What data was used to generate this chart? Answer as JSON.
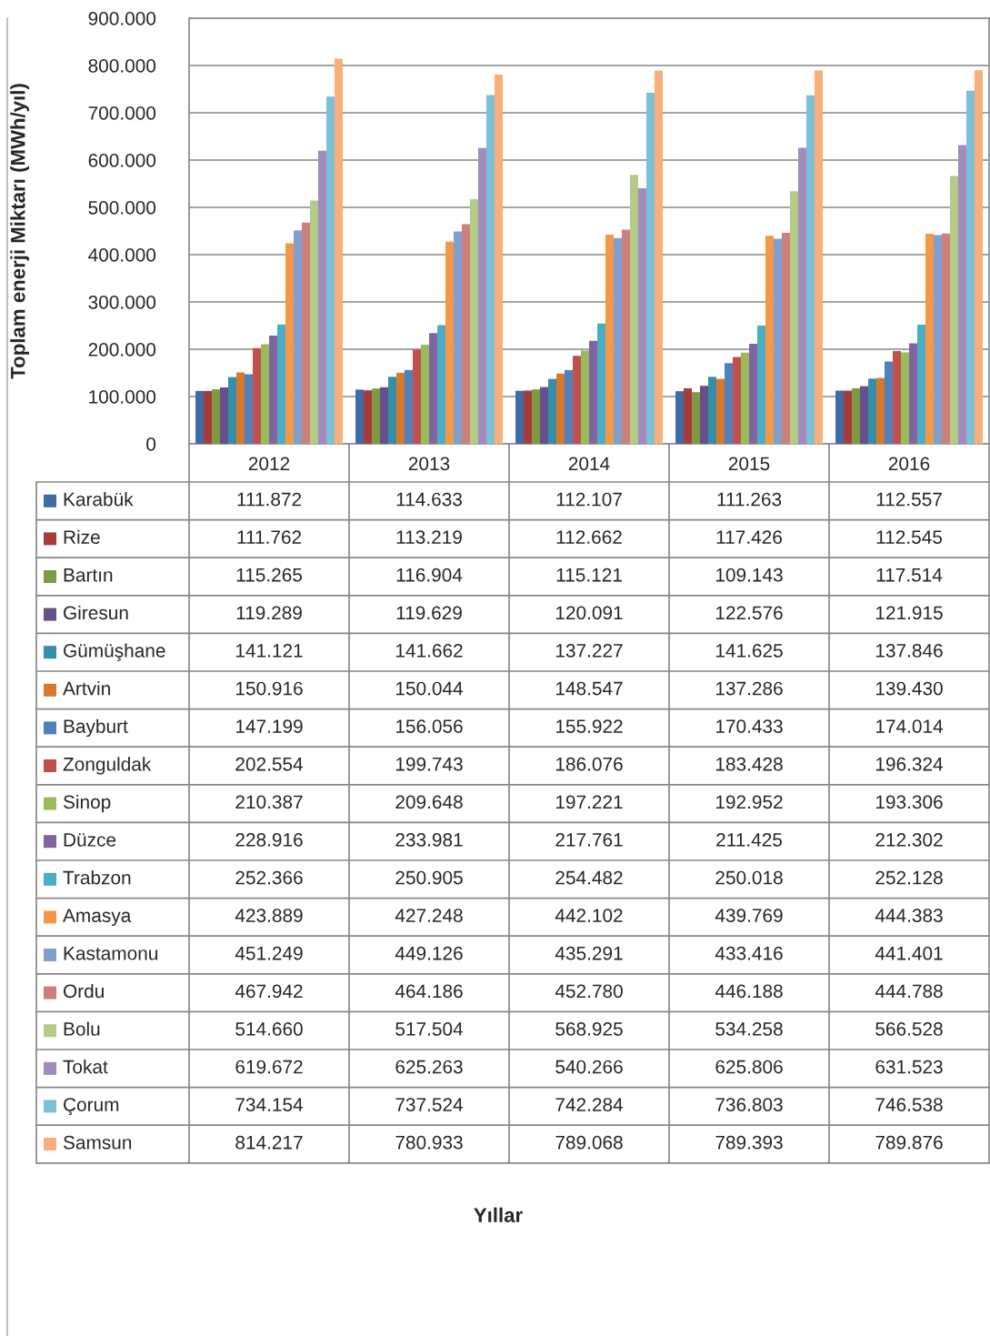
{
  "chart_data": {
    "type": "bar",
    "ylabel": "Toplam enerji Miktarı (MWh/yıl)",
    "annotations": [
      "Yıllar"
    ],
    "categories": [
      "2012",
      "2013",
      "2014",
      "2015",
      "2016"
    ],
    "ylim": [
      0,
      900000
    ],
    "yticks": [
      {
        "value": 0,
        "label": "0"
      },
      {
        "value": 100000,
        "label": "100.000"
      },
      {
        "value": 200000,
        "label": "200.000"
      },
      {
        "value": 300000,
        "label": "300.000"
      },
      {
        "value": 400000,
        "label": "400.000"
      },
      {
        "value": 500000,
        "label": "500.000"
      },
      {
        "value": 600000,
        "label": "600.000"
      },
      {
        "value": 700000,
        "label": "700.000"
      },
      {
        "value": 800000,
        "label": "800.000"
      },
      {
        "value": 900000,
        "label": "900.000"
      }
    ],
    "grid": "y",
    "legend": "bottom",
    "series": [
      {
        "name": "Karabük",
        "color": "#3c6ba5",
        "values": [
          111872,
          114633,
          112107,
          111263,
          112557
        ],
        "value_labels": [
          "111.872",
          "114.633",
          "112.107",
          "111.263",
          "112.557"
        ]
      },
      {
        "name": "Rize",
        "color": "#a83c3a",
        "values": [
          111762,
          113219,
          112662,
          117426,
          112545
        ],
        "value_labels": [
          "111.762",
          "113.219",
          "112.662",
          "117.426",
          "112.545"
        ]
      },
      {
        "name": "Bartın",
        "color": "#7f9a44",
        "values": [
          115265,
          116904,
          115121,
          109143,
          117514
        ],
        "value_labels": [
          "115.265",
          "116.904",
          "115.121",
          "109.143",
          "117.514"
        ]
      },
      {
        "name": "Giresun",
        "color": "#674f8a",
        "values": [
          119289,
          119629,
          120091,
          122576,
          121915
        ],
        "value_labels": [
          "119.289",
          "119.629",
          "120.091",
          "122.576",
          "121.915"
        ]
      },
      {
        "name": "Gümüşhane",
        "color": "#338fa8",
        "values": [
          141121,
          141662,
          137227,
          141625,
          137846
        ],
        "value_labels": [
          "141.121",
          "141.662",
          "137.227",
          "141.625",
          "137.846"
        ]
      },
      {
        "name": "Artvin",
        "color": "#d9792f",
        "values": [
          150916,
          150044,
          148547,
          137286,
          139430
        ],
        "value_labels": [
          "150.916",
          "150.044",
          "148.547",
          "137.286",
          "139.430"
        ]
      },
      {
        "name": "Bayburt",
        "color": "#4f81bd",
        "values": [
          147199,
          156056,
          155922,
          170433,
          174014
        ],
        "value_labels": [
          "147.199",
          "156.056",
          "155.922",
          "170.433",
          "174.014"
        ]
      },
      {
        "name": "Zonguldak",
        "color": "#c0504d",
        "values": [
          202554,
          199743,
          186076,
          183428,
          196324
        ],
        "value_labels": [
          "202.554",
          "199.743",
          "186.076",
          "183.428",
          "196.324"
        ]
      },
      {
        "name": "Sinop",
        "color": "#9bbb59",
        "values": [
          210387,
          209648,
          197221,
          192952,
          193306
        ],
        "value_labels": [
          "210.387",
          "209.648",
          "197.221",
          "192.952",
          "193.306"
        ]
      },
      {
        "name": "Düzce",
        "color": "#8064a2",
        "values": [
          228916,
          233981,
          217761,
          211425,
          212302
        ],
        "value_labels": [
          "228.916",
          "233.981",
          "217.761",
          "211.425",
          "212.302"
        ]
      },
      {
        "name": "Trabzon",
        "color": "#4bacc6",
        "values": [
          252366,
          250905,
          254482,
          250018,
          252128
        ],
        "value_labels": [
          "252.366",
          "250.905",
          "254.482",
          "250.018",
          "252.128"
        ]
      },
      {
        "name": "Amasya",
        "color": "#f79646",
        "values": [
          423889,
          427248,
          442102,
          439769,
          444383
        ],
        "value_labels": [
          "423.889",
          "427.248",
          "442.102",
          "439.769",
          "444.383"
        ]
      },
      {
        "name": "Kastamonu",
        "color": "#7f9fcf",
        "values": [
          451249,
          449126,
          435291,
          433416,
          441401
        ],
        "value_labels": [
          "451.249",
          "449.126",
          "435.291",
          "433.416",
          "441.401"
        ]
      },
      {
        "name": "Ordu",
        "color": "#cd7f7e",
        "values": [
          467942,
          464186,
          452780,
          446188,
          444788
        ],
        "value_labels": [
          "467.942",
          "464.186",
          "452.780",
          "446.188",
          "444.788"
        ]
      },
      {
        "name": "Bolu",
        "color": "#b3cb86",
        "values": [
          514660,
          517504,
          568925,
          534258,
          566528
        ],
        "value_labels": [
          "514.660",
          "517.504",
          "568.925",
          "534.258",
          "566.528"
        ]
      },
      {
        "name": "Tokat",
        "color": "#a08cbc",
        "values": [
          619672,
          625263,
          540266,
          625806,
          631523
        ],
        "value_labels": [
          "619.672",
          "625.263",
          "540.266",
          "625.806",
          "631.523"
        ]
      },
      {
        "name": "Çorum",
        "color": "#7cc0d5",
        "values": [
          734154,
          737524,
          742284,
          736803,
          746538
        ],
        "value_labels": [
          "734.154",
          "737.524",
          "742.284",
          "736.803",
          "746.538"
        ]
      },
      {
        "name": "Samsun",
        "color": "#f9ae7b",
        "values": [
          814217,
          780933,
          789068,
          789393,
          789876
        ],
        "value_labels": [
          "814.217",
          "780.933",
          "789.068",
          "789.393",
          "789.876"
        ]
      }
    ]
  }
}
